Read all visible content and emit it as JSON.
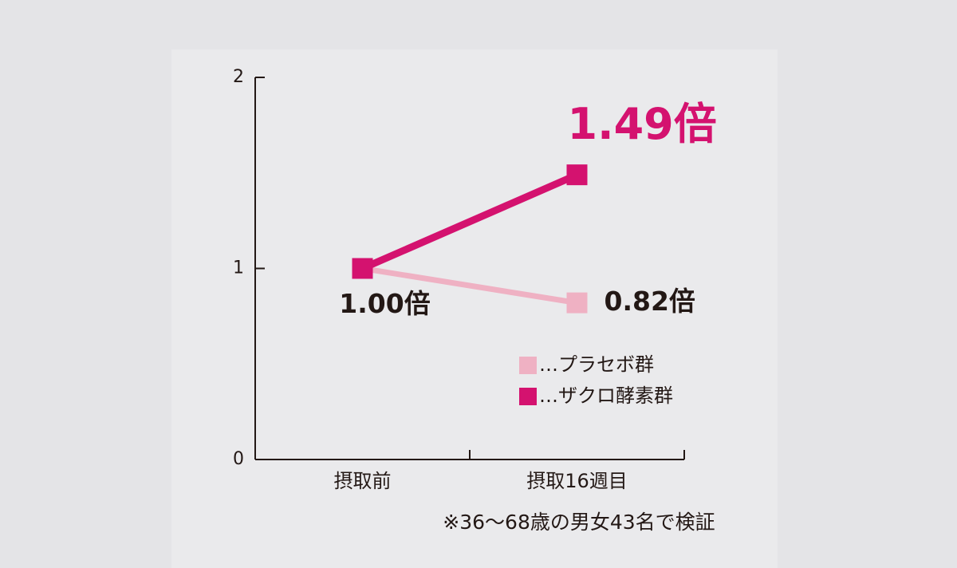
{
  "chart_data": {
    "type": "line",
    "categories": [
      "摂取前",
      "摂取16週目"
    ],
    "series": [
      {
        "name": "…プラセボ群",
        "color": "#efb1c3",
        "values": [
          1.0,
          0.82
        ],
        "value_labels": [
          null,
          "0.82倍"
        ]
      },
      {
        "name": "…ザクロ酵素群",
        "color": "#d4126f",
        "values": [
          1.0,
          1.49
        ],
        "value_labels": [
          "1.00倍",
          "1.49倍"
        ]
      }
    ],
    "ylim": [
      0,
      2
    ],
    "yticks": [
      0,
      1,
      2
    ],
    "note": "※36〜68歳の男女43名で検証"
  }
}
